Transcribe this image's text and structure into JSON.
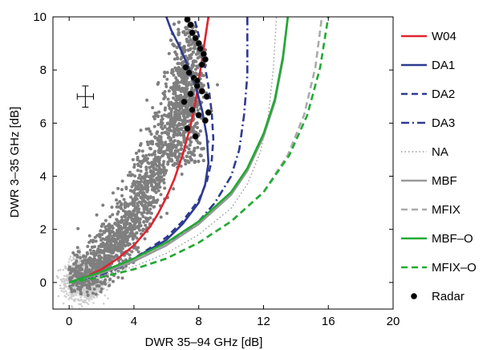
{
  "chart_data": {
    "type": "scatter",
    "title": "",
    "xlabel": "DWR 35–94 GHz [dB]",
    "ylabel": "DWR 3–35 GHz [dB]",
    "xlim": [
      -1,
      20
    ],
    "ylim": [
      -1,
      10
    ],
    "xticks": [
      "0",
      "4",
      "8",
      "12",
      "16",
      "20"
    ],
    "yticks": [
      "0",
      "2",
      "4",
      "6",
      "8",
      "10"
    ],
    "grid": false,
    "legend_position": "right outside",
    "error_bar": {
      "x": 1,
      "y": 7,
      "xerr": 0.5,
      "yerr": 0.4
    },
    "series": [
      {
        "name": "W04",
        "color": "#e0232e",
        "style": "solid",
        "kind": "line",
        "x": [
          0,
          1,
          2,
          3,
          4,
          5,
          5.5,
          6,
          6.5,
          7,
          7.5,
          7.8,
          8.0,
          8.2,
          8.4,
          8.6
        ],
        "y": [
          0,
          0.2,
          0.5,
          0.9,
          1.4,
          2.1,
          2.6,
          3.2,
          3.9,
          4.8,
          5.9,
          6.8,
          7.6,
          8.4,
          9.2,
          10
        ]
      },
      {
        "name": "DA1",
        "color": "#2e3b8f",
        "style": "solid",
        "kind": "line",
        "x": [
          0,
          2,
          4,
          6,
          7,
          8,
          8.4,
          8.6,
          8.5,
          8.2,
          7.8,
          7.3,
          6.8,
          6.3,
          6.0
        ],
        "y": [
          0,
          0.4,
          0.9,
          1.6,
          2.2,
          3.0,
          3.7,
          4.5,
          5.5,
          6.5,
          7.4,
          8.2,
          8.9,
          9.5,
          10
        ]
      },
      {
        "name": "DA2",
        "color": "#2e3b8f",
        "style": "dashed",
        "kind": "line",
        "x": [
          0,
          2,
          4,
          6,
          7,
          8,
          8.5,
          8.8,
          8.9,
          8.8,
          8.6,
          8.3,
          8.0,
          7.7
        ],
        "y": [
          0,
          0.4,
          0.9,
          1.7,
          2.3,
          3.1,
          3.8,
          4.6,
          5.4,
          6.4,
          7.4,
          8.4,
          9.3,
          10
        ]
      },
      {
        "name": "DA3",
        "color": "#2e3b8f",
        "style": "dashdot",
        "kind": "line",
        "x": [
          0,
          2,
          4,
          6,
          8,
          9,
          10,
          10.5,
          10.8,
          11.0,
          11.0
        ],
        "y": [
          0,
          0.3,
          0.8,
          1.4,
          2.3,
          3.0,
          4.0,
          5.0,
          6.3,
          7.8,
          10
        ]
      },
      {
        "name": "NA",
        "color": "#999999",
        "style": "dotted",
        "kind": "line",
        "x": [
          0,
          2,
          4,
          6,
          8,
          10,
          11,
          11.8,
          12.3,
          12.6,
          12.8
        ],
        "y": [
          0,
          0.25,
          0.6,
          1.1,
          1.8,
          2.8,
          3.7,
          4.9,
          6.3,
          8.0,
          10
        ]
      },
      {
        "name": "MBF",
        "color": "#999999",
        "style": "solid",
        "kind": "line",
        "x": [
          0,
          2,
          4,
          6,
          8,
          10,
          11,
          12,
          12.7,
          13.2,
          13.5
        ],
        "y": [
          0,
          0.35,
          0.8,
          1.4,
          2.2,
          3.3,
          4.2,
          5.5,
          6.8,
          8.4,
          10
        ]
      },
      {
        "name": "MFIX",
        "color": "#aaaaaa",
        "style": "dashed",
        "kind": "line",
        "x": [
          0,
          2,
          4,
          6,
          8,
          10,
          12,
          13.5,
          14.5,
          15.2,
          15.6
        ],
        "y": [
          0,
          0.2,
          0.5,
          0.9,
          1.5,
          2.3,
          3.4,
          4.8,
          6.3,
          8.1,
          10
        ]
      },
      {
        "name": "MBF–O",
        "color": "#22aa33",
        "style": "solid",
        "kind": "line",
        "x": [
          0,
          2,
          4,
          6,
          8,
          10,
          11,
          12,
          12.7,
          13.2,
          13.5
        ],
        "y": [
          0,
          0.4,
          0.9,
          1.5,
          2.3,
          3.4,
          4.3,
          5.6,
          6.9,
          8.5,
          10
        ]
      },
      {
        "name": "MFIX–O",
        "color": "#22aa33",
        "style": "dashed",
        "kind": "line",
        "x": [
          0,
          2,
          4,
          6,
          8,
          10,
          12,
          13.6,
          14.7,
          15.5,
          16.0
        ],
        "y": [
          0,
          0.2,
          0.5,
          0.9,
          1.5,
          2.3,
          3.4,
          4.8,
          6.3,
          8.1,
          10
        ]
      },
      {
        "name": "Radar",
        "color": "#000000",
        "kind": "marker",
        "x": [
          7.3,
          7.5,
          7.6,
          7.8,
          8.0,
          8.1,
          8.3,
          8.4,
          7.2,
          7.4,
          7.7,
          7.9,
          8.2,
          8.5,
          7.1,
          7.6,
          8.0,
          8.4,
          7.3,
          7.8,
          8.6,
          8.2,
          7.5,
          7.9
        ],
        "y": [
          9.9,
          9.7,
          9.4,
          9.2,
          9.0,
          8.8,
          8.6,
          8.4,
          8.1,
          7.9,
          7.7,
          7.4,
          7.2,
          7.0,
          6.8,
          6.5,
          6.3,
          6.1,
          5.8,
          5.5,
          6.4,
          8.2,
          7.1,
          7.6
        ]
      },
      {
        "name": "",
        "color": "#808080",
        "kind": "cloud",
        "description_bounds": {
          "x": [
            0,
            8.5
          ],
          "y": [
            0,
            10
          ]
        }
      },
      {
        "name": "",
        "color": "#cccccc",
        "kind": "cloud_light",
        "description_bounds": {
          "x": [
            0,
            2
          ],
          "y": [
            -1,
            1.5
          ]
        }
      }
    ]
  }
}
